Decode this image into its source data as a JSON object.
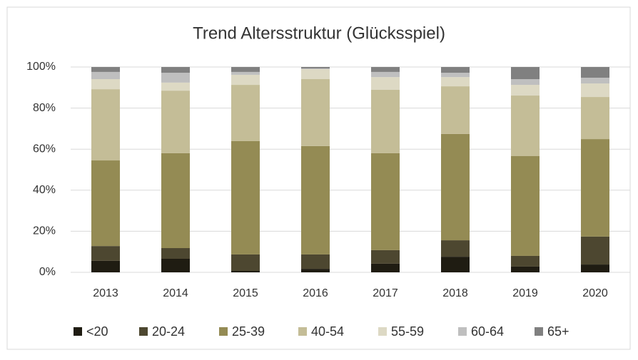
{
  "chart_data": {
    "type": "stacked_bar",
    "title": "Trend Altersstruktur (Glücksspiel)",
    "categories": [
      "2013",
      "2014",
      "2015",
      "2016",
      "2017",
      "2018",
      "2019",
      "2020"
    ],
    "series": [
      {
        "name": "<20",
        "color": "#1f1c12",
        "values": [
          5.6,
          6.6,
          0.7,
          1.7,
          4.2,
          7.6,
          2.8,
          3.8
        ]
      },
      {
        "name": "20-24",
        "color": "#4d4730",
        "values": [
          7.2,
          5.2,
          8.0,
          7.0,
          6.6,
          8.0,
          5.2,
          13.6
        ]
      },
      {
        "name": "25-39",
        "color": "#948b54",
        "values": [
          41.7,
          46.2,
          55.2,
          52.8,
          47.2,
          51.8,
          48.6,
          47.5
        ]
      },
      {
        "name": "40-54",
        "color": "#c4bd97",
        "values": [
          34.7,
          30.5,
          27.4,
          32.6,
          30.9,
          23.2,
          29.5,
          20.5
        ]
      },
      {
        "name": "55-59",
        "color": "#ddd9c4",
        "values": [
          4.9,
          3.9,
          4.9,
          4.9,
          6.2,
          4.5,
          5.2,
          6.6
        ]
      },
      {
        "name": "60-64",
        "color": "#bfbfbf",
        "values": [
          3.5,
          4.8,
          1.4,
          0.3,
          2.5,
          2.1,
          2.8,
          2.8
        ]
      },
      {
        "name": "65+",
        "color": "#808080",
        "values": [
          2.4,
          2.8,
          2.4,
          0.7,
          2.4,
          2.8,
          5.9,
          5.2
        ]
      }
    ],
    "ylim": [
      0,
      100
    ],
    "yticks": [
      {
        "value": 0,
        "label": "0%"
      },
      {
        "value": 20,
        "label": "20%"
      },
      {
        "value": 40,
        "label": "40%"
      },
      {
        "value": 60,
        "label": "60%"
      },
      {
        "value": 80,
        "label": "80%"
      },
      {
        "value": 100,
        "label": "100%"
      }
    ],
    "grid": true,
    "legend": "bottom"
  }
}
